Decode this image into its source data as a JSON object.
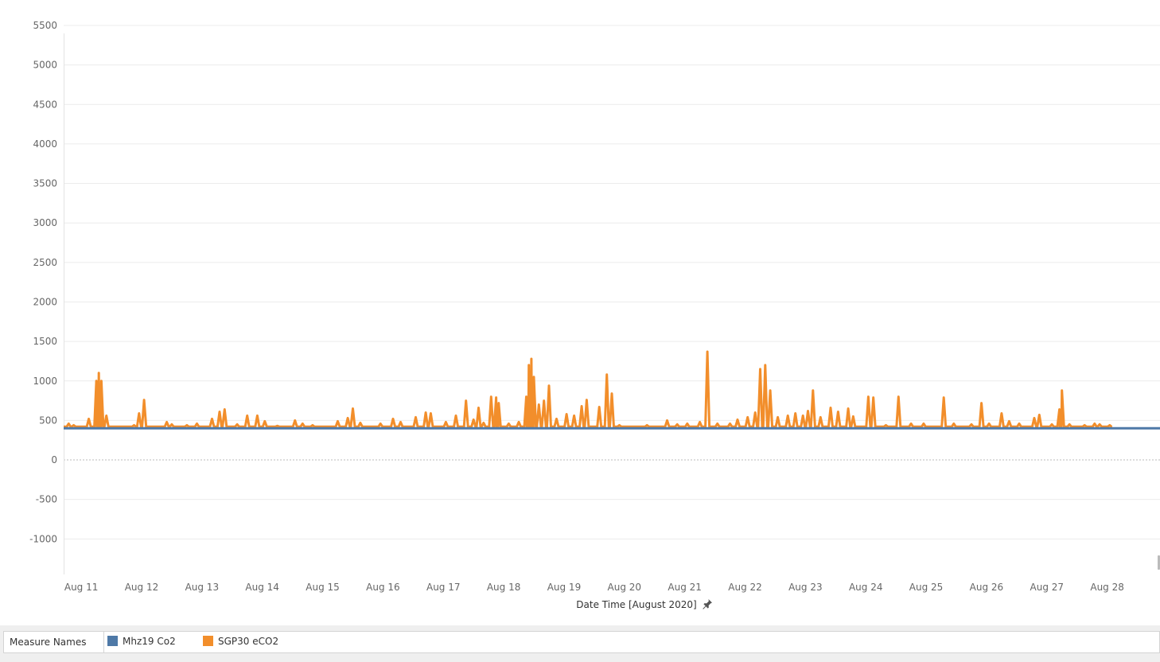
{
  "chart_data": {
    "type": "line",
    "title": "",
    "xlabel": "Date Time [August 2020]",
    "ylabel": "",
    "x_tick_labels": [
      "Aug 11",
      "Aug 12",
      "Aug 13",
      "Aug 14",
      "Aug 15",
      "Aug 16",
      "Aug 17",
      "Aug 18",
      "Aug 19",
      "Aug 20",
      "Aug 21",
      "Aug 22",
      "Aug 23",
      "Aug 24",
      "Aug 25",
      "Aug 26",
      "Aug 27",
      "Aug 28"
    ],
    "x_range": [
      "2020-08-10T17:00",
      "2020-08-28T21:00"
    ],
    "y_ticks": [
      -1000,
      -500,
      0,
      500,
      1000,
      1500,
      2000,
      2500,
      3000,
      3500,
      4000,
      4500,
      5000,
      5500
    ],
    "ylim": [
      -1450,
      5520
    ],
    "grid": true,
    "zero_line": "dotted",
    "legend_title": "Measure Names",
    "legend_placement": "bottom",
    "series": [
      {
        "name": "Mhz19 Co2",
        "color": "#4e79a7",
        "baseline": 400,
        "points": [
          [
            "2020-08-10T17:00",
            400
          ],
          [
            "2020-08-28T21:00",
            400
          ]
        ]
      },
      {
        "name": "SGP30 eCO2",
        "color": "#f28e2b",
        "baseline": 420,
        "spikes": [
          [
            "2020-08-10T19:00",
            460
          ],
          [
            "2020-08-10T21:00",
            440
          ],
          [
            "2020-08-11T03:00",
            520
          ],
          [
            "2020-08-11T06:00",
            1000
          ],
          [
            "2020-08-11T07:00",
            1100
          ],
          [
            "2020-08-11T08:00",
            1000
          ],
          [
            "2020-08-11T10:00",
            560
          ],
          [
            "2020-08-11T14:00",
            420
          ],
          [
            "2020-08-11T21:00",
            440
          ],
          [
            "2020-08-11T23:00",
            590
          ],
          [
            "2020-08-12T01:00",
            760
          ],
          [
            "2020-08-12T04:00",
            420
          ],
          [
            "2020-08-12T10:00",
            480
          ],
          [
            "2020-08-12T12:00",
            450
          ],
          [
            "2020-08-12T18:00",
            440
          ],
          [
            "2020-08-12T22:00",
            460
          ],
          [
            "2020-08-13T04:00",
            520
          ],
          [
            "2020-08-13T07:00",
            610
          ],
          [
            "2020-08-13T09:00",
            640
          ],
          [
            "2020-08-13T14:00",
            450
          ],
          [
            "2020-08-13T18:00",
            560
          ],
          [
            "2020-08-13T22:00",
            560
          ],
          [
            "2020-08-14T01:00",
            490
          ],
          [
            "2020-08-14T06:00",
            430
          ],
          [
            "2020-08-14T13:00",
            500
          ],
          [
            "2020-08-14T16:00",
            460
          ],
          [
            "2020-08-14T20:00",
            440
          ],
          [
            "2020-08-15T06:00",
            490
          ],
          [
            "2020-08-15T10:00",
            530
          ],
          [
            "2020-08-15T12:00",
            650
          ],
          [
            "2020-08-15T15:00",
            470
          ],
          [
            "2020-08-15T23:00",
            460
          ],
          [
            "2020-08-16T04:00",
            520
          ],
          [
            "2020-08-16T07:00",
            480
          ],
          [
            "2020-08-16T13:00",
            540
          ],
          [
            "2020-08-16T17:00",
            600
          ],
          [
            "2020-08-16T19:00",
            590
          ],
          [
            "2020-08-17T01:00",
            480
          ],
          [
            "2020-08-17T05:00",
            560
          ],
          [
            "2020-08-17T09:00",
            750
          ],
          [
            "2020-08-17T12:00",
            510
          ],
          [
            "2020-08-17T14:00",
            660
          ],
          [
            "2020-08-17T16:00",
            470
          ],
          [
            "2020-08-17T19:00",
            800
          ],
          [
            "2020-08-17T21:00",
            790
          ],
          [
            "2020-08-17T22:00",
            720
          ],
          [
            "2020-08-18T02:00",
            460
          ],
          [
            "2020-08-18T06:00",
            480
          ],
          [
            "2020-08-18T09:00",
            800
          ],
          [
            "2020-08-18T10:00",
            1200
          ],
          [
            "2020-08-18T11:00",
            1280
          ],
          [
            "2020-08-18T12:00",
            1050
          ],
          [
            "2020-08-18T14:00",
            700
          ],
          [
            "2020-08-18T16:00",
            750
          ],
          [
            "2020-08-18T18:00",
            940
          ],
          [
            "2020-08-18T21:00",
            520
          ],
          [
            "2020-08-19T01:00",
            580
          ],
          [
            "2020-08-19T04:00",
            560
          ],
          [
            "2020-08-19T07:00",
            680
          ],
          [
            "2020-08-19T09:00",
            760
          ],
          [
            "2020-08-19T14:00",
            670
          ],
          [
            "2020-08-19T17:00",
            1080
          ],
          [
            "2020-08-19T19:00",
            840
          ],
          [
            "2020-08-19T22:00",
            440
          ],
          [
            "2020-08-20T09:00",
            440
          ],
          [
            "2020-08-20T17:00",
            500
          ],
          [
            "2020-08-20T21:00",
            450
          ],
          [
            "2020-08-21T01:00",
            460
          ],
          [
            "2020-08-21T06:00",
            480
          ],
          [
            "2020-08-21T09:00",
            1370
          ],
          [
            "2020-08-21T13:00",
            460
          ],
          [
            "2020-08-21T18:00",
            460
          ],
          [
            "2020-08-21T21:00",
            510
          ],
          [
            "2020-08-22T01:00",
            540
          ],
          [
            "2020-08-22T04:00",
            600
          ],
          [
            "2020-08-22T06:00",
            1150
          ],
          [
            "2020-08-22T08:00",
            1200
          ],
          [
            "2020-08-22T10:00",
            880
          ],
          [
            "2020-08-22T13:00",
            540
          ],
          [
            "2020-08-22T17:00",
            560
          ],
          [
            "2020-08-22T20:00",
            590
          ],
          [
            "2020-08-22T23:00",
            560
          ],
          [
            "2020-08-23T01:00",
            620
          ],
          [
            "2020-08-23T03:00",
            880
          ],
          [
            "2020-08-23T06:00",
            540
          ],
          [
            "2020-08-23T10:00",
            660
          ],
          [
            "2020-08-23T13:00",
            610
          ],
          [
            "2020-08-23T17:00",
            650
          ],
          [
            "2020-08-23T19:00",
            550
          ],
          [
            "2020-08-24T01:00",
            800
          ],
          [
            "2020-08-24T03:00",
            790
          ],
          [
            "2020-08-24T08:00",
            440
          ],
          [
            "2020-08-24T13:00",
            800
          ],
          [
            "2020-08-24T18:00",
            460
          ],
          [
            "2020-08-24T23:00",
            460
          ],
          [
            "2020-08-25T07:00",
            790
          ],
          [
            "2020-08-25T11:00",
            460
          ],
          [
            "2020-08-25T18:00",
            450
          ],
          [
            "2020-08-25T22:00",
            720
          ],
          [
            "2020-08-26T01:00",
            460
          ],
          [
            "2020-08-26T06:00",
            590
          ],
          [
            "2020-08-26T09:00",
            490
          ],
          [
            "2020-08-26T13:00",
            460
          ],
          [
            "2020-08-26T19:00",
            530
          ],
          [
            "2020-08-26T21:00",
            570
          ],
          [
            "2020-08-27T02:00",
            450
          ],
          [
            "2020-08-27T05:00",
            640
          ],
          [
            "2020-08-27T06:00",
            880
          ],
          [
            "2020-08-27T09:00",
            450
          ],
          [
            "2020-08-27T15:00",
            440
          ],
          [
            "2020-08-27T19:00",
            460
          ],
          [
            "2020-08-27T21:00",
            450
          ],
          [
            "2020-08-28T01:00",
            440
          ]
        ]
      }
    ]
  }
}
